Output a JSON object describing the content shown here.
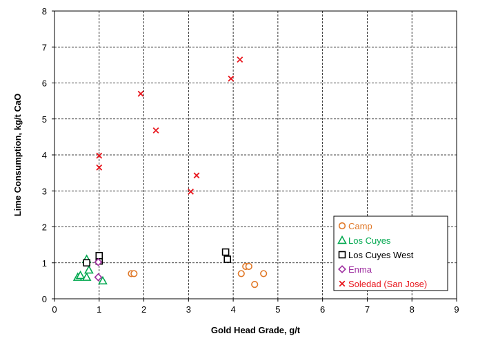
{
  "chart_data": {
    "type": "scatter",
    "xlabel": "Gold Head Grade, g/t",
    "ylabel": "Lime Consumption, kg/t CaO",
    "xlim": [
      0,
      9
    ],
    "ylim": [
      0,
      8
    ],
    "xticks": [
      "0",
      "1",
      "2",
      "3",
      "4",
      "5",
      "6",
      "7",
      "8",
      "9"
    ],
    "yticks": [
      "0",
      "1",
      "2",
      "3",
      "4",
      "5",
      "6",
      "7",
      "8"
    ],
    "grid": true,
    "legend_position": "bottom-right",
    "series": [
      {
        "name": "Camp",
        "marker": "circle",
        "color": "#E07828",
        "points": [
          [
            1.72,
            0.7
          ],
          [
            1.78,
            0.7
          ],
          [
            4.18,
            0.7
          ],
          [
            4.28,
            0.9
          ],
          [
            4.35,
            0.9
          ],
          [
            4.48,
            0.4
          ],
          [
            4.68,
            0.7
          ]
        ]
      },
      {
        "name": "Los Cuyes",
        "marker": "triangle",
        "color": "#00A84F",
        "points": [
          [
            0.52,
            0.6
          ],
          [
            0.58,
            0.65
          ],
          [
            0.72,
            0.6
          ],
          [
            0.72,
            1.1
          ],
          [
            0.77,
            0.8
          ],
          [
            1.08,
            0.5
          ]
        ]
      },
      {
        "name": "Los Cuyes West",
        "marker": "square",
        "color": "#000000",
        "points": [
          [
            0.72,
            1.0
          ],
          [
            1.0,
            1.05
          ],
          [
            1.0,
            1.2
          ],
          [
            3.83,
            1.3
          ],
          [
            3.87,
            1.1
          ]
        ]
      },
      {
        "name": "Enma",
        "marker": "diamond",
        "color": "#9E2FA0",
        "points": [
          [
            0.98,
            1.02
          ],
          [
            0.98,
            0.6
          ]
        ]
      },
      {
        "name": "Soledad (San Jose)",
        "marker": "x",
        "color": "#E8161D",
        "points": [
          [
            1.0,
            3.98
          ],
          [
            1.0,
            3.65
          ],
          [
            1.93,
            5.7
          ],
          [
            2.27,
            4.68
          ],
          [
            3.05,
            2.98
          ],
          [
            3.18,
            3.43
          ],
          [
            3.95,
            6.12
          ],
          [
            4.15,
            6.65
          ]
        ]
      }
    ]
  }
}
